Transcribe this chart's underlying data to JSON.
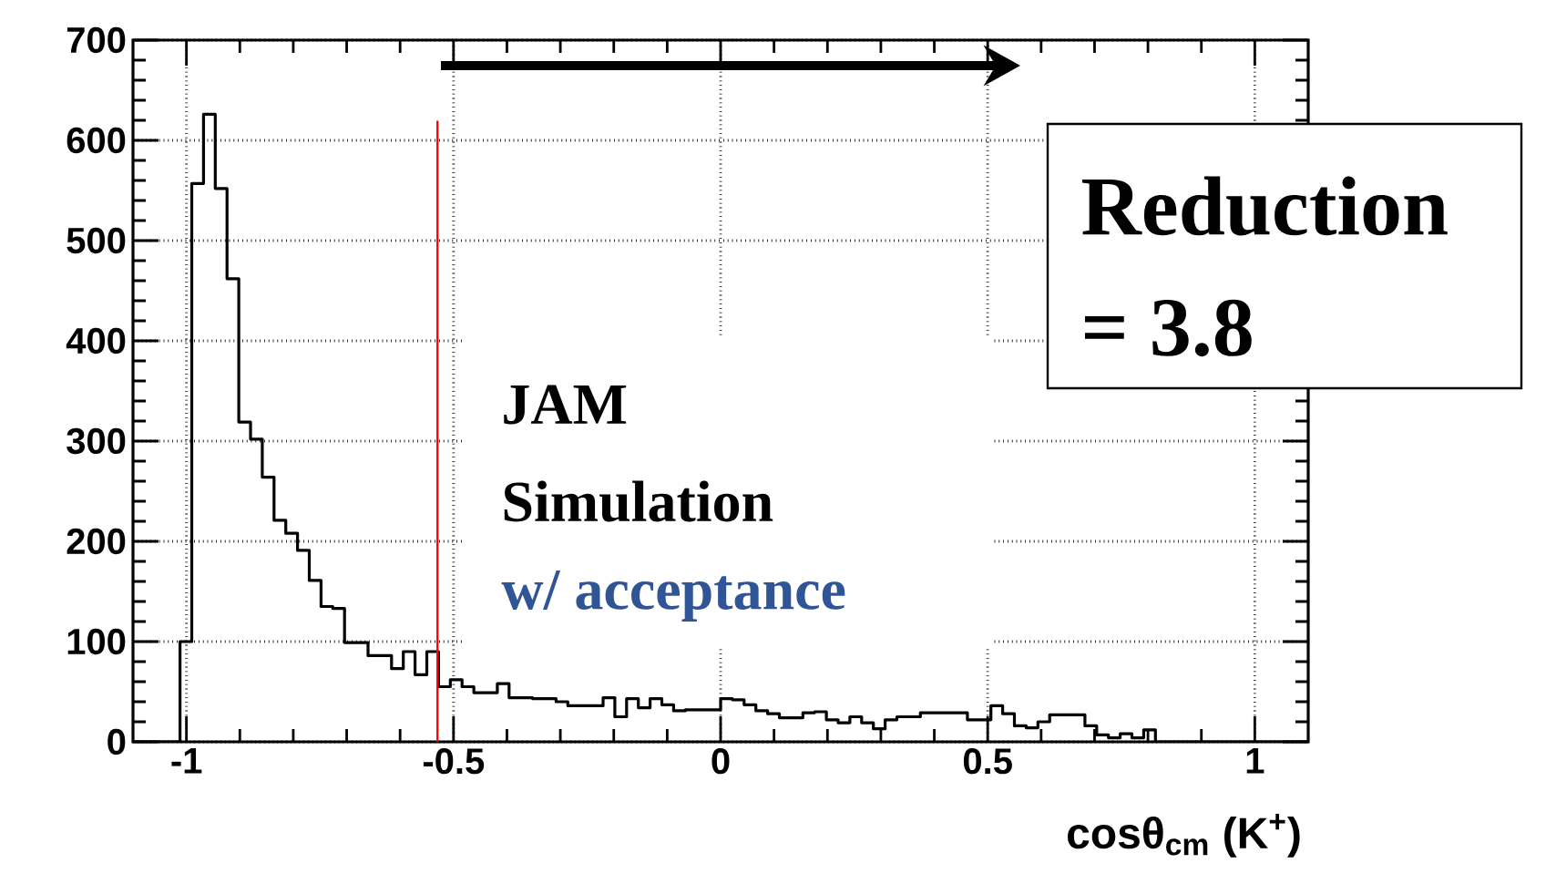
{
  "chart_data": {
    "type": "histogram",
    "xlabel": "cosθ$_{cm}$ (K$^{+}$)",
    "bins": [
      -1.1,
      -1.078,
      -1.056,
      -1.034,
      -1.012,
      -0.99,
      -0.968,
      -0.946,
      -0.924,
      -0.902,
      -0.88,
      -0.858,
      -0.836,
      -0.814,
      -0.792,
      -0.77,
      -0.748,
      -0.726,
      -0.704,
      -0.682,
      -0.66,
      -0.638,
      -0.616,
      -0.594,
      -0.572,
      -0.55,
      -0.528,
      -0.506,
      -0.484,
      -0.462,
      -0.44,
      -0.418,
      -0.396,
      -0.374,
      -0.352,
      -0.33,
      -0.308,
      -0.286,
      -0.264,
      -0.242,
      -0.22,
      -0.198,
      -0.176,
      -0.154,
      -0.132,
      -0.11,
      -0.088,
      -0.066,
      -0.044,
      -0.022,
      0,
      0.022,
      0.044,
      0.066,
      0.088,
      0.11,
      0.132,
      0.154,
      0.176,
      0.198,
      0.22,
      0.242,
      0.264,
      0.286,
      0.308,
      0.33,
      0.352,
      0.374,
      0.396,
      0.418,
      0.44,
      0.462,
      0.484,
      0.506,
      0.528,
      0.55,
      0.572,
      0.594,
      0.616,
      0.638,
      0.66,
      0.682,
      0.704,
      0.726,
      0.748,
      0.77,
      0.792,
      0.814,
      0.836,
      0.858,
      0.88,
      0.902,
      0.924,
      0.946,
      0.968,
      0.99,
      1.012,
      1.034,
      1.056,
      1.078,
      1.1
    ],
    "values": [
      0,
      0,
      0,
      0,
      100,
      557,
      626,
      552,
      462,
      319,
      302,
      264,
      221,
      208,
      191,
      161,
      135,
      133,
      99,
      99,
      86,
      86,
      73,
      90,
      67,
      90,
      55,
      62,
      55,
      49,
      49,
      58,
      44,
      44,
      43,
      43,
      40,
      36,
      36,
      36,
      44,
      25,
      43,
      34,
      43,
      37,
      31,
      32,
      32,
      32,
      43,
      42,
      37,
      31,
      28,
      24,
      24,
      29,
      30,
      22,
      19,
      25,
      19,
      13,
      22,
      25,
      25,
      29,
      29,
      29,
      29,
      22,
      22,
      36,
      28,
      16,
      14,
      20,
      27,
      27,
      27,
      16,
      7,
      4,
      8,
      4,
      12,
      0,
      0,
      0,
      0,
      0,
      0,
      0,
      0,
      0,
      0,
      0,
      0,
      0
    ],
    "color": "#000000",
    "xlim": [
      -1.1,
      1.1
    ],
    "ylim": [
      0,
      700
    ],
    "xticks": [
      -1,
      -0.5,
      0,
      0.5,
      1
    ],
    "yticks": [
      0,
      100,
      200,
      300,
      400,
      500,
      600,
      700
    ],
    "grid": true,
    "ref_lines": [
      {
        "axis": "x",
        "value": -0.53,
        "color": "#ff0000"
      }
    ],
    "annotations": [
      "JAM",
      "Simulation",
      "w/ acceptance",
      "Reduction",
      "= 3.8"
    ]
  }
}
